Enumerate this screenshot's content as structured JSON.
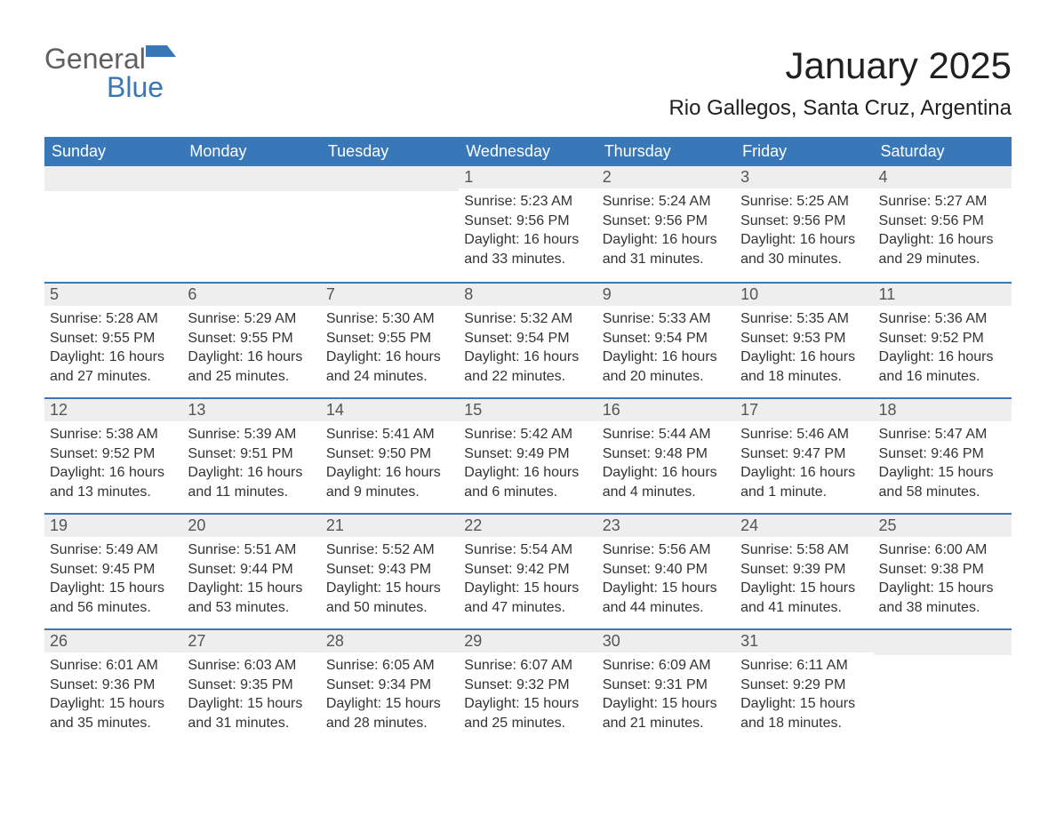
{
  "brand": {
    "part1": "General",
    "part2": "Blue"
  },
  "title": "January 2025",
  "location": "Rio Gallegos, Santa Cruz, Argentina",
  "colors": {
    "accent": "#3878b8",
    "row_stripe": "#eeeeee",
    "header_text": "#ffffff",
    "text": "#333333"
  },
  "calendar": {
    "columns": [
      "Sunday",
      "Monday",
      "Tuesday",
      "Wednesday",
      "Thursday",
      "Friday",
      "Saturday"
    ],
    "weeks": [
      [
        null,
        null,
        null,
        {
          "day": "1",
          "sunrise": "Sunrise: 5:23 AM",
          "sunset": "Sunset: 9:56 PM",
          "daylight": "Daylight: 16 hours and 33 minutes."
        },
        {
          "day": "2",
          "sunrise": "Sunrise: 5:24 AM",
          "sunset": "Sunset: 9:56 PM",
          "daylight": "Daylight: 16 hours and 31 minutes."
        },
        {
          "day": "3",
          "sunrise": "Sunrise: 5:25 AM",
          "sunset": "Sunset: 9:56 PM",
          "daylight": "Daylight: 16 hours and 30 minutes."
        },
        {
          "day": "4",
          "sunrise": "Sunrise: 5:27 AM",
          "sunset": "Sunset: 9:56 PM",
          "daylight": "Daylight: 16 hours and 29 minutes."
        }
      ],
      [
        {
          "day": "5",
          "sunrise": "Sunrise: 5:28 AM",
          "sunset": "Sunset: 9:55 PM",
          "daylight": "Daylight: 16 hours and 27 minutes."
        },
        {
          "day": "6",
          "sunrise": "Sunrise: 5:29 AM",
          "sunset": "Sunset: 9:55 PM",
          "daylight": "Daylight: 16 hours and 25 minutes."
        },
        {
          "day": "7",
          "sunrise": "Sunrise: 5:30 AM",
          "sunset": "Sunset: 9:55 PM",
          "daylight": "Daylight: 16 hours and 24 minutes."
        },
        {
          "day": "8",
          "sunrise": "Sunrise: 5:32 AM",
          "sunset": "Sunset: 9:54 PM",
          "daylight": "Daylight: 16 hours and 22 minutes."
        },
        {
          "day": "9",
          "sunrise": "Sunrise: 5:33 AM",
          "sunset": "Sunset: 9:54 PM",
          "daylight": "Daylight: 16 hours and 20 minutes."
        },
        {
          "day": "10",
          "sunrise": "Sunrise: 5:35 AM",
          "sunset": "Sunset: 9:53 PM",
          "daylight": "Daylight: 16 hours and 18 minutes."
        },
        {
          "day": "11",
          "sunrise": "Sunrise: 5:36 AM",
          "sunset": "Sunset: 9:52 PM",
          "daylight": "Daylight: 16 hours and 16 minutes."
        }
      ],
      [
        {
          "day": "12",
          "sunrise": "Sunrise: 5:38 AM",
          "sunset": "Sunset: 9:52 PM",
          "daylight": "Daylight: 16 hours and 13 minutes."
        },
        {
          "day": "13",
          "sunrise": "Sunrise: 5:39 AM",
          "sunset": "Sunset: 9:51 PM",
          "daylight": "Daylight: 16 hours and 11 minutes."
        },
        {
          "day": "14",
          "sunrise": "Sunrise: 5:41 AM",
          "sunset": "Sunset: 9:50 PM",
          "daylight": "Daylight: 16 hours and 9 minutes."
        },
        {
          "day": "15",
          "sunrise": "Sunrise: 5:42 AM",
          "sunset": "Sunset: 9:49 PM",
          "daylight": "Daylight: 16 hours and 6 minutes."
        },
        {
          "day": "16",
          "sunrise": "Sunrise: 5:44 AM",
          "sunset": "Sunset: 9:48 PM",
          "daylight": "Daylight: 16 hours and 4 minutes."
        },
        {
          "day": "17",
          "sunrise": "Sunrise: 5:46 AM",
          "sunset": "Sunset: 9:47 PM",
          "daylight": "Daylight: 16 hours and 1 minute."
        },
        {
          "day": "18",
          "sunrise": "Sunrise: 5:47 AM",
          "sunset": "Sunset: 9:46 PM",
          "daylight": "Daylight: 15 hours and 58 minutes."
        }
      ],
      [
        {
          "day": "19",
          "sunrise": "Sunrise: 5:49 AM",
          "sunset": "Sunset: 9:45 PM",
          "daylight": "Daylight: 15 hours and 56 minutes."
        },
        {
          "day": "20",
          "sunrise": "Sunrise: 5:51 AM",
          "sunset": "Sunset: 9:44 PM",
          "daylight": "Daylight: 15 hours and 53 minutes."
        },
        {
          "day": "21",
          "sunrise": "Sunrise: 5:52 AM",
          "sunset": "Sunset: 9:43 PM",
          "daylight": "Daylight: 15 hours and 50 minutes."
        },
        {
          "day": "22",
          "sunrise": "Sunrise: 5:54 AM",
          "sunset": "Sunset: 9:42 PM",
          "daylight": "Daylight: 15 hours and 47 minutes."
        },
        {
          "day": "23",
          "sunrise": "Sunrise: 5:56 AM",
          "sunset": "Sunset: 9:40 PM",
          "daylight": "Daylight: 15 hours and 44 minutes."
        },
        {
          "day": "24",
          "sunrise": "Sunrise: 5:58 AM",
          "sunset": "Sunset: 9:39 PM",
          "daylight": "Daylight: 15 hours and 41 minutes."
        },
        {
          "day": "25",
          "sunrise": "Sunrise: 6:00 AM",
          "sunset": "Sunset: 9:38 PM",
          "daylight": "Daylight: 15 hours and 38 minutes."
        }
      ],
      [
        {
          "day": "26",
          "sunrise": "Sunrise: 6:01 AM",
          "sunset": "Sunset: 9:36 PM",
          "daylight": "Daylight: 15 hours and 35 minutes."
        },
        {
          "day": "27",
          "sunrise": "Sunrise: 6:03 AM",
          "sunset": "Sunset: 9:35 PM",
          "daylight": "Daylight: 15 hours and 31 minutes."
        },
        {
          "day": "28",
          "sunrise": "Sunrise: 6:05 AM",
          "sunset": "Sunset: 9:34 PM",
          "daylight": "Daylight: 15 hours and 28 minutes."
        },
        {
          "day": "29",
          "sunrise": "Sunrise: 6:07 AM",
          "sunset": "Sunset: 9:32 PM",
          "daylight": "Daylight: 15 hours and 25 minutes."
        },
        {
          "day": "30",
          "sunrise": "Sunrise: 6:09 AM",
          "sunset": "Sunset: 9:31 PM",
          "daylight": "Daylight: 15 hours and 21 minutes."
        },
        {
          "day": "31",
          "sunrise": "Sunrise: 6:11 AM",
          "sunset": "Sunset: 9:29 PM",
          "daylight": "Daylight: 15 hours and 18 minutes."
        },
        null
      ]
    ]
  }
}
